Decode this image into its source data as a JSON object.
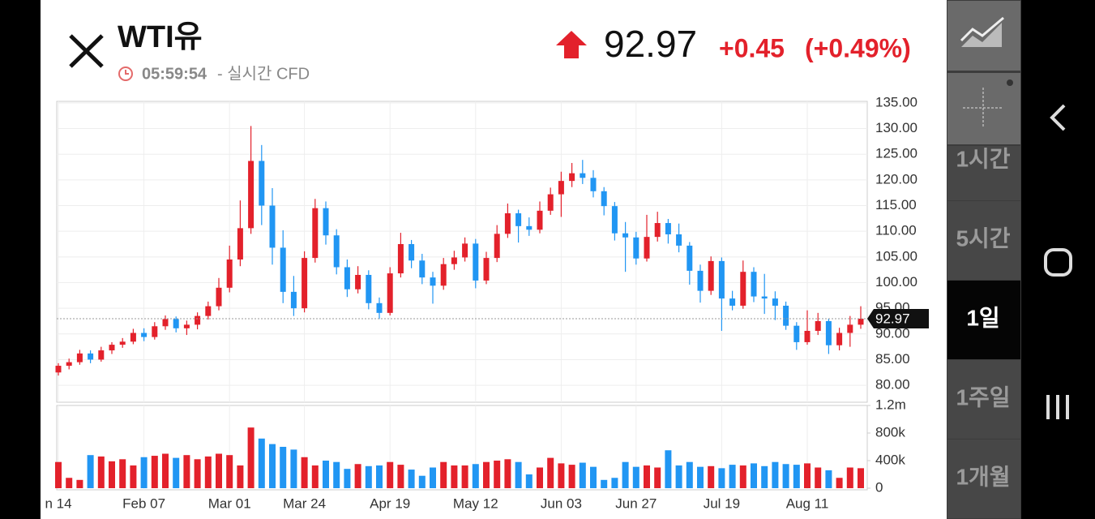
{
  "header": {
    "title": "WTI유",
    "time": "05:59:54",
    "realtime": "- 실시간 CFD",
    "change": "+0.45",
    "change_pct": "(+0.49%)"
  },
  "sidebar": {
    "intervals": [
      "1시간",
      "5시간",
      "1일",
      "1주일",
      "1개월"
    ],
    "selected": 2
  },
  "chart_data": {
    "type": "candlestick",
    "last_price": 92.97,
    "up_color": "#e3212b",
    "down_color": "#2196f3",
    "categories": [
      "n 14",
      null,
      null,
      null,
      null,
      null,
      null,
      null,
      "Feb 07",
      null,
      null,
      null,
      null,
      null,
      null,
      null,
      "Mar 01",
      null,
      null,
      null,
      null,
      null,
      null,
      "Mar 24",
      null,
      null,
      null,
      null,
      null,
      null,
      null,
      "Apr 19",
      null,
      null,
      null,
      null,
      null,
      null,
      null,
      "May 12",
      null,
      null,
      null,
      null,
      null,
      null,
      null,
      "Jun 03",
      null,
      null,
      null,
      null,
      null,
      null,
      "Jun 27",
      null,
      null,
      null,
      null,
      null,
      null,
      null,
      "Jul 19",
      null,
      null,
      null,
      null,
      null,
      null,
      null,
      "Aug 11",
      null,
      null,
      null,
      null,
      null
    ],
    "open": [
      82.5,
      83.8,
      84.5,
      86.2,
      85.0,
      86.8,
      87.9,
      88.5,
      90.2,
      89.4,
      91.5,
      92.9,
      91.1,
      91.8,
      93.5,
      95.4,
      99.0,
      104.5,
      110.6,
      123.7,
      115.0,
      106.8,
      98.2,
      95.0,
      104.8,
      114.5,
      109.2,
      103.0,
      98.7,
      101.5,
      96.0,
      94.1,
      101.8,
      107.5,
      104.3,
      101.0,
      99.4,
      103.6,
      104.9,
      107.6,
      100.4,
      104.8,
      109.5,
      113.5,
      111.0,
      110.3,
      114.0,
      117.2,
      119.8,
      121.3,
      120.4,
      117.8,
      114.9,
      109.6,
      108.8,
      104.7,
      108.9,
      111.6,
      109.4,
      107.2,
      102.3,
      98.4,
      104.2,
      96.9,
      95.5,
      102.1,
      97.3,
      96.9,
      95.5,
      91.6,
      88.4,
      90.6,
      92.5,
      87.8,
      90.2,
      91.8
    ],
    "high": [
      84.3,
      85.2,
      86.9,
      86.8,
      87.5,
      88.4,
      89.2,
      91.0,
      91.1,
      92.3,
      93.6,
      93.4,
      92.6,
      94.2,
      96.3,
      100.9,
      107.2,
      116.0,
      130.5,
      126.8,
      118.4,
      110.2,
      101.3,
      106.1,
      116.3,
      115.8,
      110.4,
      104.5,
      103.2,
      102.4,
      97.1,
      103.0,
      109.7,
      108.3,
      105.6,
      102.1,
      104.8,
      106.2,
      108.8,
      108.5,
      106.0,
      111.2,
      115.4,
      114.2,
      112.7,
      115.8,
      118.5,
      121.6,
      123.3,
      123.9,
      121.9,
      118.6,
      115.7,
      111.8,
      109.9,
      113.2,
      113.8,
      112.4,
      111.5,
      107.9,
      103.5,
      105.1,
      104.9,
      98.4,
      104.3,
      103.0,
      101.7,
      98.3,
      96.3,
      92.3,
      94.6,
      94.1,
      93.0,
      91.2,
      93.5,
      95.4
    ],
    "low": [
      81.9,
      83.1,
      84.0,
      84.3,
      84.6,
      86.1,
      87.3,
      88.0,
      88.6,
      88.9,
      90.8,
      90.3,
      89.8,
      90.9,
      92.8,
      94.6,
      98.1,
      103.2,
      109.5,
      111.2,
      103.5,
      96.0,
      93.5,
      94.2,
      103.9,
      107.4,
      101.6,
      97.2,
      97.9,
      94.8,
      92.9,
      93.6,
      101.0,
      102.8,
      99.7,
      95.9,
      98.6,
      102.5,
      104.1,
      98.9,
      99.7,
      104.0,
      108.7,
      107.8,
      109.1,
      109.6,
      113.2,
      112.8,
      118.6,
      119.2,
      116.6,
      113.1,
      108.2,
      102.1,
      103.5,
      104.1,
      108.0,
      107.6,
      105.9,
      99.6,
      96.1,
      97.6,
      90.6,
      94.6,
      94.9,
      96.2,
      93.9,
      92.7,
      90.8,
      86.9,
      87.9,
      89.8,
      86.1,
      86.8,
      87.5,
      91.0
    ],
    "close": [
      83.8,
      84.5,
      86.2,
      85.0,
      86.8,
      87.9,
      88.5,
      90.2,
      89.4,
      91.5,
      92.9,
      91.1,
      91.8,
      93.5,
      95.4,
      99.0,
      104.5,
      110.6,
      123.7,
      115.0,
      106.8,
      98.2,
      95.0,
      104.8,
      114.5,
      109.2,
      103.0,
      98.7,
      101.5,
      96.0,
      94.1,
      101.8,
      107.5,
      104.3,
      101.0,
      99.4,
      103.6,
      104.9,
      107.6,
      100.4,
      104.8,
      109.5,
      113.5,
      111.0,
      110.3,
      114.0,
      117.2,
      119.8,
      121.3,
      120.4,
      117.8,
      114.9,
      109.6,
      108.8,
      104.7,
      108.9,
      111.6,
      109.4,
      107.2,
      102.3,
      98.4,
      104.2,
      96.9,
      95.5,
      102.1,
      97.3,
      96.9,
      95.5,
      91.6,
      88.4,
      90.6,
      92.5,
      87.8,
      90.2,
      91.8,
      92.97
    ],
    "volume": [
      380000,
      150000,
      120000,
      480000,
      460000,
      390000,
      420000,
      330000,
      450000,
      470000,
      500000,
      440000,
      480000,
      420000,
      460000,
      500000,
      480000,
      330000,
      880000,
      720000,
      640000,
      600000,
      560000,
      450000,
      330000,
      400000,
      380000,
      280000,
      350000,
      320000,
      330000,
      380000,
      340000,
      270000,
      180000,
      300000,
      380000,
      330000,
      330000,
      350000,
      380000,
      400000,
      420000,
      380000,
      200000,
      300000,
      440000,
      360000,
      340000,
      370000,
      310000,
      120000,
      150000,
      380000,
      310000,
      330000,
      300000,
      550000,
      330000,
      380000,
      310000,
      320000,
      290000,
      340000,
      330000,
      360000,
      320000,
      380000,
      350000,
      340000,
      360000,
      300000,
      260000,
      150000,
      300000,
      290000
    ],
    "ylim": [
      76.7,
      135.3
    ],
    "yticks": [
      {
        "value": 80,
        "label": "80.00"
      },
      {
        "value": 85,
        "label": "85.00"
      },
      {
        "value": 90,
        "label": "90.00"
      },
      {
        "value": 95,
        "label": "95.00"
      },
      {
        "value": 100,
        "label": "100.00"
      },
      {
        "value": 105,
        "label": "105.00"
      },
      {
        "value": 110,
        "label": "110.00"
      },
      {
        "value": 115,
        "label": "115.00"
      },
      {
        "value": 120,
        "label": "120.00"
      },
      {
        "value": 125,
        "label": "125.00"
      },
      {
        "value": 130,
        "label": "130.00"
      },
      {
        "value": 135,
        "label": "135.00"
      }
    ],
    "y2lim": [
      0,
      1200000
    ],
    "y2ticks": [
      0,
      {
        "value": 400000,
        "label": "400k"
      },
      {
        "value": 800000,
        "label": "800k"
      },
      {
        "value": 1200000,
        "label": "1.2m"
      }
    ],
    "grid": true
  }
}
